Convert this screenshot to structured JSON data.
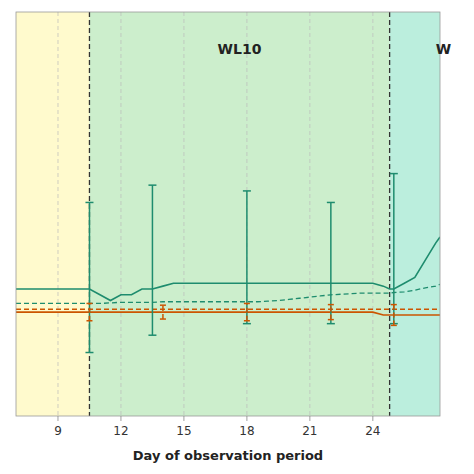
{
  "chart_data": {
    "type": "line",
    "x_label": "Day of observation period",
    "annotations": [
      {
        "text": "WL10"
      },
      {
        "text": "W"
      }
    ],
    "xlim": [
      7.0,
      27.2
    ],
    "ylim": [
      -2.5,
      4.5
    ],
    "xticks": [
      9,
      12,
      15,
      18,
      21,
      24
    ],
    "yticks": [],
    "tick_labels": "x",
    "grid": true,
    "regions": [
      {
        "xmin": 7.0,
        "xmax": 10.5,
        "color": "#FFFACD"
      },
      {
        "xmin": 10.5,
        "xmax": 24.8,
        "color": "#CCEECC"
      },
      {
        "xmin": 24.8,
        "xmax": 27.2,
        "color": "#BBEEDD"
      }
    ],
    "vlines": [
      {
        "x": 10.5,
        "color": "#333333",
        "line_style": "dashed"
      },
      {
        "x": 24.8,
        "color": "#333333",
        "line_style": "dashed"
      }
    ],
    "series": [
      {
        "color": "#1E8C6E",
        "line_style": "dashed",
        "x": [
          7.0,
          7.5,
          8.0,
          8.5,
          9.0,
          9.5,
          10.0,
          10.5,
          11.0,
          11.5,
          12.0,
          12.5,
          13.0,
          13.5,
          14.0,
          14.5,
          15.0,
          15.5,
          16.0,
          16.5,
          17.0,
          17.5,
          18.0,
          18.5,
          19.0,
          19.5,
          20.0,
          20.5,
          21.0,
          21.5,
          22.0,
          22.5,
          23.0,
          23.5,
          24.0,
          24.5,
          24.8,
          25.0,
          25.5,
          26.0,
          26.5,
          27.0,
          27.2
        ],
        "values": [
          -0.55,
          -0.55,
          -0.55,
          -0.55,
          -0.55,
          -0.55,
          -0.55,
          -0.55,
          -0.55,
          -0.54,
          -0.53,
          -0.53,
          -0.53,
          -0.53,
          -0.52,
          -0.52,
          -0.52,
          -0.52,
          -0.52,
          -0.52,
          -0.52,
          -0.52,
          -0.52,
          -0.52,
          -0.51,
          -0.5,
          -0.48,
          -0.46,
          -0.44,
          -0.42,
          -0.4,
          -0.39,
          -0.38,
          -0.37,
          -0.37,
          -0.37,
          -0.37,
          -0.36,
          -0.35,
          -0.32,
          -0.28,
          -0.25,
          -0.22
        ]
      },
      {
        "color": "#CC5500",
        "line_style": "dashed",
        "x": [
          7.0,
          7.5,
          8.0,
          8.5,
          9.0,
          9.5,
          10.0,
          10.5,
          11.0,
          11.5,
          12.0,
          12.5,
          13.0,
          13.5,
          14.0,
          14.5,
          15.0,
          15.5,
          16.0,
          16.5,
          17.0,
          17.5,
          18.0,
          18.5,
          19.0,
          19.5,
          20.0,
          20.5,
          21.0,
          21.5,
          22.0,
          22.5,
          23.0,
          23.5,
          24.0,
          24.5,
          24.8,
          25.0,
          25.5,
          26.0,
          26.5,
          27.0,
          27.2
        ],
        "values": [
          -0.65,
          -0.65,
          -0.65,
          -0.65,
          -0.65,
          -0.65,
          -0.65,
          -0.65,
          -0.65,
          -0.65,
          -0.65,
          -0.65,
          -0.65,
          -0.65,
          -0.65,
          -0.65,
          -0.65,
          -0.65,
          -0.65,
          -0.65,
          -0.65,
          -0.65,
          -0.65,
          -0.65,
          -0.65,
          -0.65,
          -0.65,
          -0.65,
          -0.65,
          -0.65,
          -0.65,
          -0.65,
          -0.65,
          -0.65,
          -0.65,
          -0.65,
          -0.65,
          -0.65,
          -0.65,
          -0.65,
          -0.65,
          -0.65,
          -0.65
        ]
      },
      {
        "color": "#1E8C6E",
        "line_style": "solid",
        "x": [
          7.0,
          7.5,
          8.0,
          8.5,
          9.0,
          9.5,
          10.0,
          10.5,
          11.0,
          11.5,
          12.0,
          12.5,
          13.0,
          13.5,
          14.0,
          14.5,
          15.0,
          15.5,
          16.0,
          16.5,
          17.0,
          17.5,
          18.0,
          18.5,
          19.0,
          19.5,
          20.0,
          20.5,
          21.0,
          21.5,
          22.0,
          22.5,
          23.0,
          23.5,
          24.0,
          24.5,
          24.8,
          25.0,
          25.5,
          26.0,
          26.5,
          27.0,
          27.2
        ],
        "values": [
          -0.3,
          -0.3,
          -0.3,
          -0.3,
          -0.3,
          -0.3,
          -0.3,
          -0.3,
          -0.4,
          -0.5,
          -0.4,
          -0.4,
          -0.3,
          -0.3,
          -0.25,
          -0.2,
          -0.2,
          -0.2,
          -0.2,
          -0.2,
          -0.2,
          -0.2,
          -0.2,
          -0.2,
          -0.2,
          -0.2,
          -0.2,
          -0.2,
          -0.2,
          -0.2,
          -0.2,
          -0.2,
          -0.2,
          -0.2,
          -0.2,
          -0.25,
          -0.3,
          -0.3,
          -0.2,
          -0.1,
          0.2,
          0.5,
          0.6
        ],
        "error_bars": {
          "line_style": "solid",
          "x": [
            10.5,
            13.5,
            18.0,
            22.0,
            25.0
          ],
          "y": [
            -0.3,
            -0.3,
            -0.2,
            -0.2,
            -0.3
          ],
          "minus": [
            1.1,
            0.8,
            0.7,
            0.7,
            0.6
          ],
          "plus": [
            1.5,
            1.8,
            1.6,
            1.4,
            2.0
          ]
        }
      },
      {
        "color": "#CC5500",
        "line_style": "solid",
        "x": [
          7.0,
          7.5,
          8.0,
          8.5,
          9.0,
          9.5,
          10.0,
          10.5,
          11.0,
          11.5,
          12.0,
          12.5,
          13.0,
          13.5,
          14.0,
          14.5,
          15.0,
          15.5,
          16.0,
          16.5,
          17.0,
          17.5,
          18.0,
          18.5,
          19.0,
          19.5,
          20.0,
          20.5,
          21.0,
          21.5,
          22.0,
          22.5,
          23.0,
          23.5,
          24.0,
          24.5,
          24.8,
          25.0,
          25.5,
          26.0,
          26.5,
          27.0,
          27.2
        ],
        "values": [
          -0.7,
          -0.7,
          -0.7,
          -0.7,
          -0.7,
          -0.7,
          -0.7,
          -0.7,
          -0.7,
          -0.7,
          -0.7,
          -0.7,
          -0.7,
          -0.7,
          -0.7,
          -0.7,
          -0.7,
          -0.7,
          -0.7,
          -0.7,
          -0.7,
          -0.7,
          -0.7,
          -0.7,
          -0.7,
          -0.7,
          -0.7,
          -0.7,
          -0.7,
          -0.7,
          -0.7,
          -0.7,
          -0.7,
          -0.7,
          -0.7,
          -0.75,
          -0.75,
          -0.75,
          -0.75,
          -0.75,
          -0.75,
          -0.75,
          -0.75
        ],
        "error_bars": {
          "line_style": "dashed",
          "x": [
            10.5,
            14.0,
            18.0,
            22.0,
            25.0
          ],
          "y": [
            -0.7,
            -0.7,
            -0.7,
            -0.7,
            -0.75
          ],
          "minus": [
            0.15,
            0.12,
            0.15,
            0.13,
            0.18
          ],
          "plus": [
            0.15,
            0.12,
            0.15,
            0.13,
            0.18
          ]
        }
      }
    ]
  }
}
